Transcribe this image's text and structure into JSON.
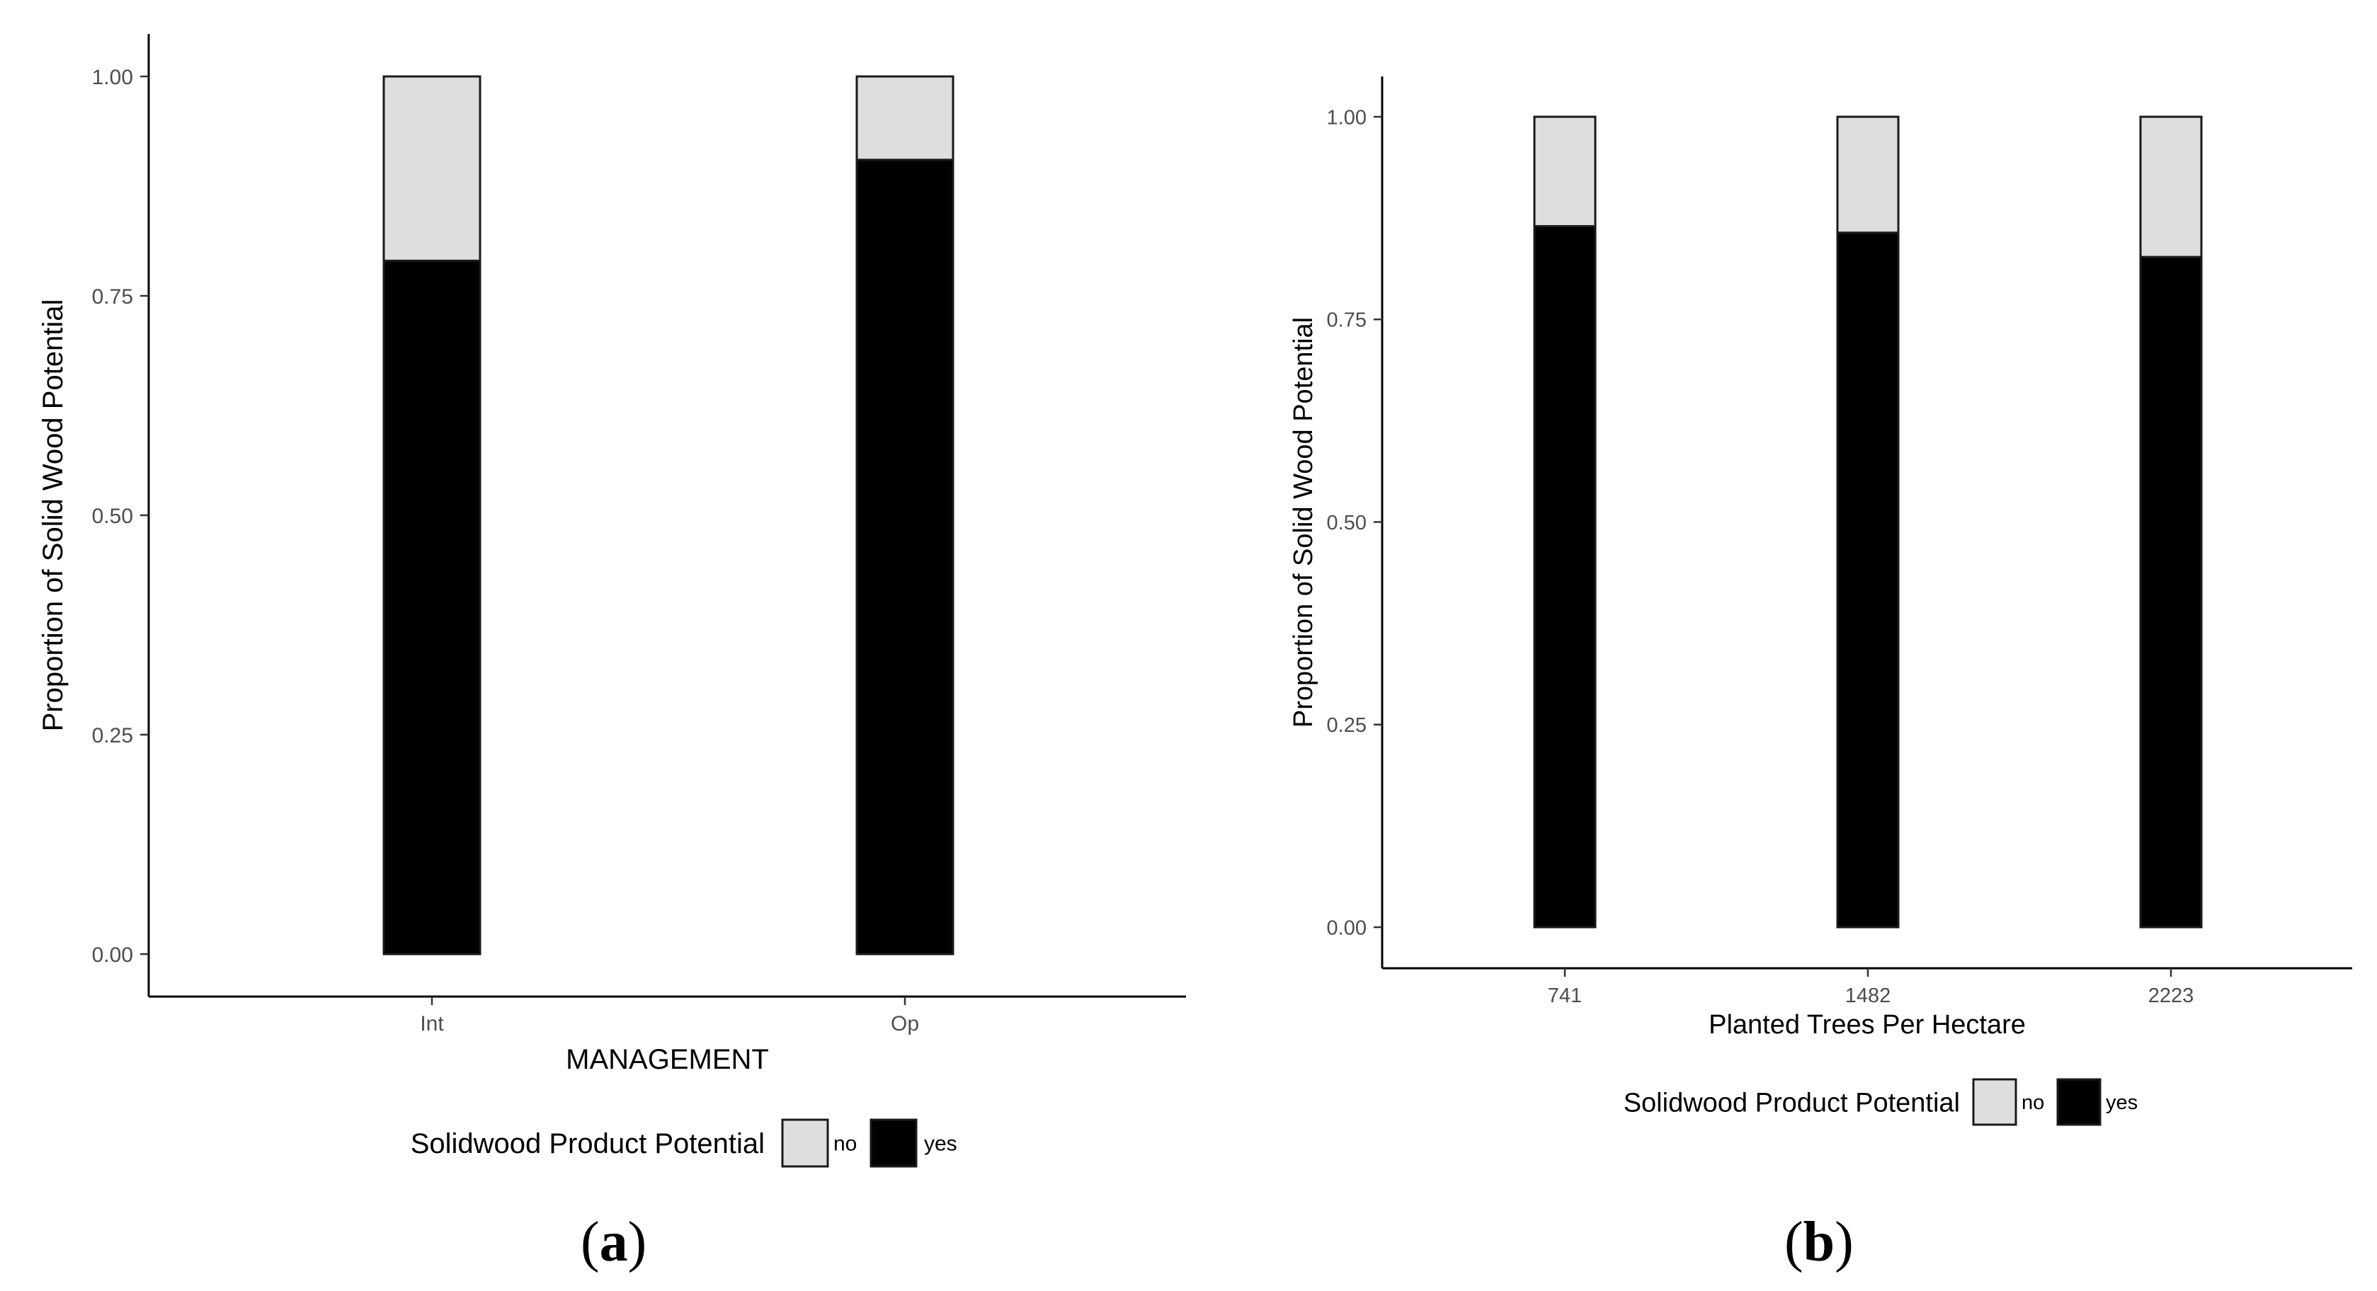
{
  "chart_data": [
    {
      "type": "bar",
      "stacked": true,
      "panel": "a",
      "xlabel": "MANAGEMENT",
      "ylabel": "Proportion of Solid Wood Potential",
      "categories": [
        "Int",
        "Op"
      ],
      "series": [
        {
          "name": "yes",
          "values": [
            0.79,
            0.905
          ],
          "color": "#000000"
        },
        {
          "name": "no",
          "values": [
            0.21,
            0.095
          ],
          "color": "#dedede"
        }
      ],
      "ylim": [
        0,
        1
      ],
      "yticks": [
        "0.00",
        "0.25",
        "0.50",
        "0.75",
        "1.00"
      ],
      "grid": false,
      "legend": {
        "title": "Solidwood Product Potential",
        "position": "bottom",
        "entries": [
          "no",
          "yes"
        ]
      }
    },
    {
      "type": "bar",
      "stacked": true,
      "panel": "b",
      "xlabel": "Planted Trees Per Hectare",
      "ylabel": "Proportion of Solid Wood Potential",
      "categories": [
        "741",
        "1482",
        "2223"
      ],
      "series": [
        {
          "name": "yes",
          "values": [
            0.865,
            0.857,
            0.827
          ],
          "color": "#000000"
        },
        {
          "name": "no",
          "values": [
            0.135,
            0.143,
            0.173
          ],
          "color": "#dedede"
        }
      ],
      "ylim": [
        0,
        1
      ],
      "yticks": [
        "0.00",
        "0.25",
        "0.50",
        "0.75",
        "1.00"
      ],
      "grid": false,
      "legend": {
        "title": "Solidwood Product Potential",
        "position": "bottom",
        "entries": [
          "no",
          "yes"
        ]
      }
    }
  ],
  "panels": {
    "a": {
      "open": "(",
      "letter": "a",
      "close": ")"
    },
    "b": {
      "open": "(",
      "letter": "b",
      "close": ")"
    }
  }
}
